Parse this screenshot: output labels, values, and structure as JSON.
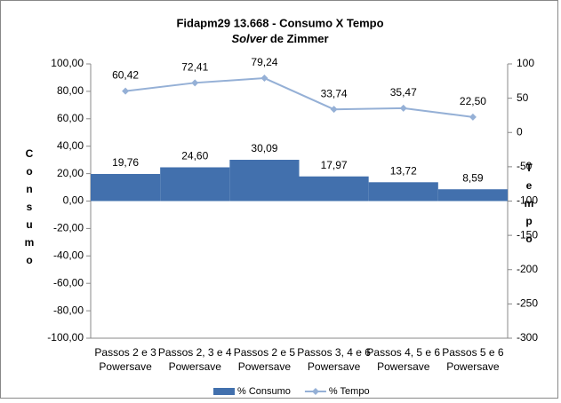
{
  "chart_data": {
    "type": "bar_line",
    "title": "Fidapm29 13.668 -  Consumo X Tempo",
    "subtitle_italic": "Solver",
    "subtitle": "de Zimmer",
    "y_label": "Consumo",
    "y2_label": "Tempo",
    "categories": [
      [
        "Passos 2 e 3",
        "Powersave"
      ],
      [
        "Passos 2, 3 e 4",
        "Powersave"
      ],
      [
        "Passos 2 e 5",
        "Powersave"
      ],
      [
        "Passos 3, 4 e 6",
        "Powersave"
      ],
      [
        "Passos 4, 5 e 6",
        "Powersave"
      ],
      [
        "Passos 5 e 6",
        "Powersave"
      ]
    ],
    "series": [
      {
        "name": "% Consumo",
        "kind": "bar",
        "color": "#4270ad",
        "values": [
          19.76,
          24.6,
          30.09,
          17.97,
          13.72,
          8.59
        ],
        "value_labels": [
          "19,76",
          "24,60",
          "30,09",
          "17,97",
          "13,72",
          "8,59"
        ]
      },
      {
        "name": "% Tempo",
        "kind": "line",
        "axis": "y2",
        "color": "#95b0d6",
        "values": [
          60.42,
          72.41,
          79.24,
          33.74,
          35.47,
          22.5
        ],
        "value_labels": [
          "60,42",
          "72,41",
          "79,24",
          "33,74",
          "35,47",
          "22,50"
        ]
      }
    ],
    "ylim": [
      -100,
      100
    ],
    "yticks": [
      {
        "value": -100,
        "label": "-100,00"
      },
      {
        "value": -80,
        "label": "-80,00"
      },
      {
        "value": -60,
        "label": "-60,00"
      },
      {
        "value": -40,
        "label": "-40,00"
      },
      {
        "value": -20,
        "label": "-20,00"
      },
      {
        "value": 0,
        "label": "0,00"
      },
      {
        "value": 20,
        "label": "20,00"
      },
      {
        "value": 40,
        "label": "40,00"
      },
      {
        "value": 60,
        "label": "60,00"
      },
      {
        "value": 80,
        "label": "80,00"
      },
      {
        "value": 100,
        "label": "100,00"
      }
    ],
    "y2lim": [
      -300,
      100
    ],
    "y2ticks": [
      -300,
      -250,
      -200,
      -150,
      -100,
      -50,
      0,
      50,
      100
    ],
    "legend": "bottom"
  }
}
